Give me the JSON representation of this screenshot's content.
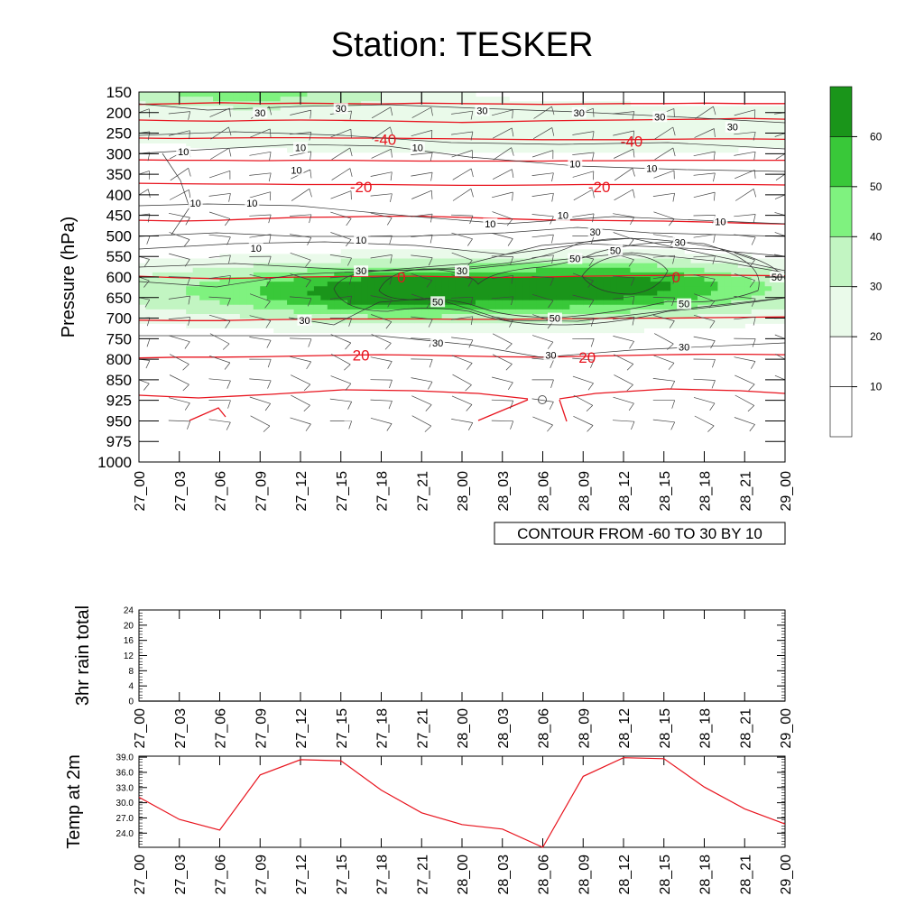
{
  "title": "Station: TESKER",
  "time_labels": [
    "27_00",
    "27_03",
    "27_06",
    "27_09",
    "27_12",
    "27_15",
    "27_18",
    "27_21",
    "28_00",
    "28_03",
    "28_06",
    "28_09",
    "28_12",
    "28_15",
    "28_18",
    "28_21",
    "29_00"
  ],
  "colors": {
    "temperature_contour": "#e8141e",
    "rh_contour": "#333333",
    "rh_fill": [
      "#ffffff",
      "#ffffff",
      "#eafaea",
      "#c2f5c2",
      "#7ff27f",
      "#39c839",
      "#1a951a"
    ],
    "temp2m_line": "#e8141e"
  },
  "chart_data": [
    {
      "type": "heatmap",
      "name": "cross_section",
      "ylabel": "Pressure (hPa)",
      "yticks": [
        150,
        200,
        250,
        300,
        350,
        400,
        450,
        500,
        550,
        600,
        650,
        700,
        750,
        800,
        850,
        925,
        950,
        975,
        1000
      ],
      "ylim": [
        150,
        1000
      ],
      "y_reversed": true,
      "contour_note": "CONTOUR FROM -60 TO 30 BY 10",
      "colorbar_levels": [
        10,
        20,
        30,
        40,
        50,
        60
      ],
      "fill_levels": [
        0,
        10,
        20,
        30,
        40,
        50,
        60,
        70
      ],
      "rh_contour_labels": [
        {
          "x": 3,
          "level": 200,
          "text": "30"
        },
        {
          "x": 5,
          "level": 190,
          "text": "30"
        },
        {
          "x": 8.5,
          "level": 195,
          "text": "30"
        },
        {
          "x": 10.9,
          "level": 200,
          "text": "30"
        },
        {
          "x": 12.9,
          "level": 210,
          "text": "30"
        },
        {
          "x": 14.7,
          "level": 235,
          "text": "30"
        },
        {
          "x": 1.1,
          "level": 295,
          "text": "10"
        },
        {
          "x": 4,
          "level": 285,
          "text": "10"
        },
        {
          "x": 6.9,
          "level": 285,
          "text": "10"
        },
        {
          "x": 10.8,
          "level": 325,
          "text": "10"
        },
        {
          "x": 12.7,
          "level": 335,
          "text": "10"
        },
        {
          "x": 3.9,
          "level": 340,
          "text": "10"
        },
        {
          "x": 1.4,
          "level": 420,
          "text": "10"
        },
        {
          "x": 2.8,
          "level": 420,
          "text": "10"
        },
        {
          "x": 8.7,
          "level": 470,
          "text": "10"
        },
        {
          "x": 10.5,
          "level": 450,
          "text": "10"
        },
        {
          "x": 14.4,
          "level": 465,
          "text": "10"
        },
        {
          "x": 2.9,
          "level": 530,
          "text": "10"
        },
        {
          "x": 5.5,
          "level": 510,
          "text": "10"
        },
        {
          "x": 11.3,
          "level": 490,
          "text": "30"
        },
        {
          "x": 13.4,
          "level": 515,
          "text": "30"
        },
        {
          "x": 5.5,
          "level": 585,
          "text": "30"
        },
        {
          "x": 8,
          "level": 585,
          "text": "30"
        },
        {
          "x": 11.8,
          "level": 535,
          "text": "50"
        },
        {
          "x": 10.8,
          "level": 555,
          "text": "50"
        },
        {
          "x": 7.4,
          "level": 660,
          "text": "50"
        },
        {
          "x": 10.3,
          "level": 700,
          "text": "50"
        },
        {
          "x": 13.5,
          "level": 665,
          "text": "50"
        },
        {
          "x": 15.8,
          "level": 600,
          "text": "50"
        },
        {
          "x": 4.1,
          "level": 705,
          "text": "30"
        },
        {
          "x": 7.4,
          "level": 760,
          "text": "30"
        },
        {
          "x": 10.2,
          "level": 790,
          "text": "30"
        },
        {
          "x": 13.5,
          "level": 770,
          "text": "30"
        }
      ],
      "temp_contour_labels": [
        {
          "x": 6.1,
          "level": 265,
          "text": "-40"
        },
        {
          "x": 12.2,
          "level": 270,
          "text": "-40"
        },
        {
          "x": 5.5,
          "level": 380,
          "text": "-20"
        },
        {
          "x": 11.4,
          "level": 380,
          "text": "-20"
        },
        {
          "x": 6.5,
          "level": 600,
          "text": "0"
        },
        {
          "x": 13.3,
          "level": 600,
          "text": "0"
        },
        {
          "x": 5.5,
          "level": 790,
          "text": "20"
        },
        {
          "x": 11.1,
          "level": 795,
          "text": "20"
        }
      ]
    },
    {
      "type": "line",
      "name": "rain",
      "ylabel": "3hr rain total",
      "yticks": [
        0,
        4,
        8,
        12,
        16,
        20,
        24
      ],
      "ylim": [
        0,
        24
      ],
      "values": [
        0,
        0,
        0,
        0,
        0,
        0,
        0,
        0,
        0,
        0,
        0,
        0,
        0,
        0,
        0,
        0,
        0
      ]
    },
    {
      "type": "line",
      "name": "temp2m",
      "ylabel": "Temp at 2m",
      "yticks": [
        "24.0",
        "27.0",
        "30.0",
        "33.0",
        "36.0",
        "39.0"
      ],
      "ylim": [
        21.2,
        39.2
      ],
      "values": [
        31.1,
        26.7,
        24.6,
        35.5,
        38.5,
        38.3,
        32.5,
        28.0,
        25.7,
        24.8,
        21.2,
        35.2,
        38.9,
        38.7,
        33.1,
        28.8,
        25.8
      ]
    }
  ]
}
